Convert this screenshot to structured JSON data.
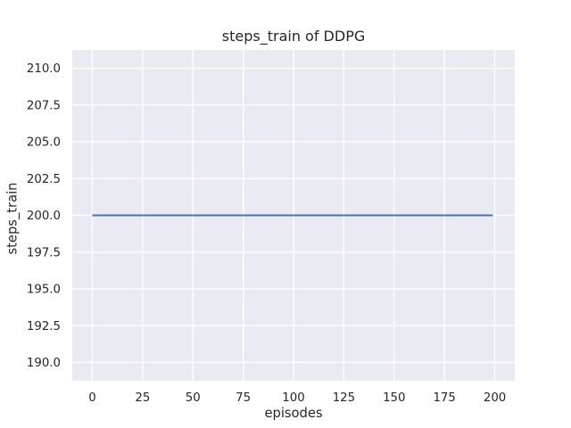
{
  "figure": {
    "background": "#FFFFFF"
  },
  "chart_data": {
    "type": "line",
    "title": "steps_train of DDPG",
    "xlabel": "episodes",
    "ylabel": "steps_train",
    "xlim": [
      -9.95,
      209.95
    ],
    "ylim": [
      188.75,
      211.25
    ],
    "xtick_labels": [
      "0",
      "25",
      "50",
      "75",
      "100",
      "125",
      "150",
      "175",
      "200"
    ],
    "ytick_labels": [
      "190.0",
      "192.5",
      "195.0",
      "197.5",
      "200.0",
      "202.5",
      "205.0",
      "207.5",
      "210.0"
    ],
    "grid": true,
    "legend_position": "none",
    "plot_background": "#EAEAF2",
    "grid_color": "#FFFFFF",
    "text_color": "#262626",
    "series": [
      {
        "name": "steps_train",
        "color": "#4C72B0",
        "line_width": 2,
        "x": [
          0,
          199
        ],
        "y": [
          200,
          200
        ]
      }
    ]
  }
}
